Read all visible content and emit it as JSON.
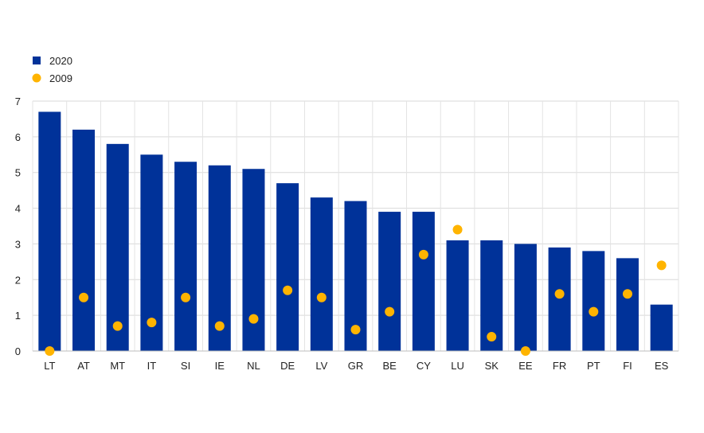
{
  "chart_data": {
    "type": "bar",
    "categories": [
      "LT",
      "AT",
      "MT",
      "IT",
      "SI",
      "IE",
      "NL",
      "DE",
      "LV",
      "GR",
      "BE",
      "CY",
      "LU",
      "SK",
      "EE",
      "FR",
      "PT",
      "FI",
      "ES"
    ],
    "series": [
      {
        "name": "2020",
        "type": "bar",
        "color": "#003299",
        "values": [
          6.7,
          6.2,
          5.8,
          5.5,
          5.3,
          5.2,
          5.1,
          4.7,
          4.3,
          4.2,
          3.9,
          3.9,
          3.1,
          3.1,
          3.0,
          2.9,
          2.8,
          2.6,
          1.3
        ]
      },
      {
        "name": "2009",
        "type": "scatter",
        "color": "#FFB400",
        "values": [
          0.0,
          1.5,
          0.7,
          0.8,
          1.5,
          0.7,
          0.9,
          1.7,
          1.5,
          0.6,
          1.1,
          2.7,
          3.4,
          0.4,
          0.0,
          1.6,
          1.1,
          1.6,
          2.4
        ]
      }
    ],
    "ylim": [
      0,
      7
    ],
    "yticks": [
      "0",
      "1",
      "2",
      "3",
      "4",
      "5",
      "6",
      "7"
    ],
    "grid": true,
    "legend_position": "top-left"
  }
}
